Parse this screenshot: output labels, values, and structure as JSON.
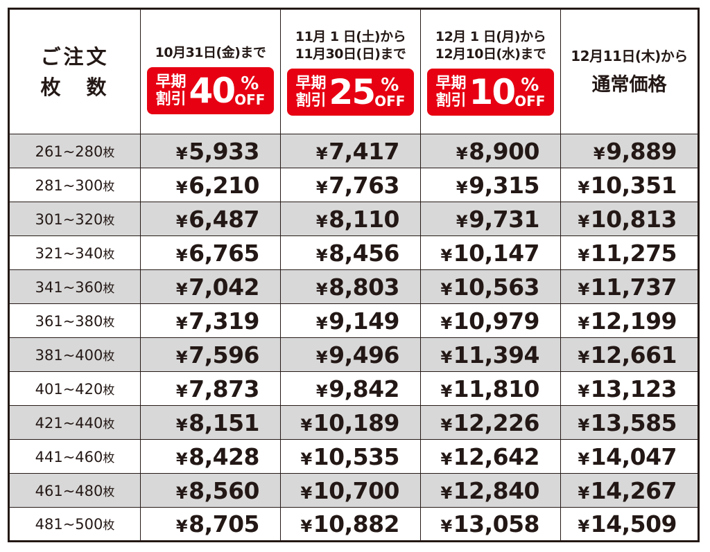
{
  "header": {
    "qty_label_line1": "ご注文",
    "qty_label_line2": "枚　数",
    "columns": [
      {
        "period_line1": "10月31日(金)まで",
        "period_line2": "",
        "badge_label_line1": "早期",
        "badge_label_line2": "割引",
        "badge_percent": "40",
        "badge_percent_sign": "%",
        "badge_off": "OFF",
        "badge_color": "#e60012"
      },
      {
        "period_line1": "11月 1 日(土)から",
        "period_line2": "11月30日(日)まで",
        "badge_label_line1": "早期",
        "badge_label_line2": "割引",
        "badge_percent": "25",
        "badge_percent_sign": "%",
        "badge_off": "OFF",
        "badge_color": "#e60012"
      },
      {
        "period_line1": "12月 1 日(月)から",
        "period_line2": "12月10日(水)まで",
        "badge_label_line1": "早期",
        "badge_label_line2": "割引",
        "badge_percent": "10",
        "badge_percent_sign": "%",
        "badge_off": "OFF",
        "badge_color": "#e60012"
      },
      {
        "period_line1": "12月11日(木)から",
        "regular_title": "通常価格"
      }
    ]
  },
  "currency_symbol": "¥",
  "unit_label": "枚",
  "rows": [
    {
      "qty": "261~280",
      "prices": [
        "5,933",
        "7,417",
        "8,900",
        "9,889"
      ]
    },
    {
      "qty": "281~300",
      "prices": [
        "6,210",
        "7,763",
        "9,315",
        "10,351"
      ]
    },
    {
      "qty": "301~320",
      "prices": [
        "6,487",
        "8,110",
        "9,731",
        "10,813"
      ]
    },
    {
      "qty": "321~340",
      "prices": [
        "6,765",
        "8,456",
        "10,147",
        "11,275"
      ]
    },
    {
      "qty": "341~360",
      "prices": [
        "7,042",
        "8,803",
        "10,563",
        "11,737"
      ]
    },
    {
      "qty": "361~380",
      "prices": [
        "7,319",
        "9,149",
        "10,979",
        "12,199"
      ]
    },
    {
      "qty": "381~400",
      "prices": [
        "7,596",
        "9,496",
        "11,394",
        "12,661"
      ]
    },
    {
      "qty": "401~420",
      "prices": [
        "7,873",
        "9,842",
        "11,810",
        "13,123"
      ]
    },
    {
      "qty": "421~440",
      "prices": [
        "8,151",
        "10,189",
        "12,226",
        "13,585"
      ]
    },
    {
      "qty": "441~460",
      "prices": [
        "8,428",
        "10,535",
        "12,642",
        "14,047"
      ]
    },
    {
      "qty": "461~480",
      "prices": [
        "8,560",
        "10,700",
        "12,840",
        "14,267"
      ]
    },
    {
      "qty": "481~500",
      "prices": [
        "8,705",
        "10,882",
        "13,058",
        "14,509"
      ]
    }
  ],
  "colors": {
    "row_shade": "#d8d8d8",
    "text": "#231815",
    "badge": "#e60012"
  }
}
